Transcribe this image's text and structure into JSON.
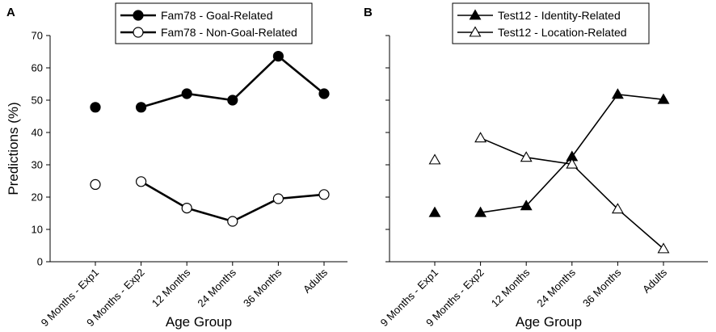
{
  "chart_data": [
    {
      "panel": "A",
      "type": "line",
      "categories": [
        "9 Months - Exp1",
        "9 Months - Exp2",
        "12 Months",
        "24 Months",
        "36 Months",
        "Adults"
      ],
      "xlabel": "Age Group",
      "ylabel": "Predictions (%)",
      "ylim": [
        0,
        70
      ],
      "yticks": [
        0,
        10,
        20,
        30,
        40,
        50,
        60,
        70
      ],
      "show_tick_labels": true,
      "grid": false,
      "legend_position": "top-center",
      "series": [
        {
          "name": "Fam78 - Goal-Related",
          "marker": "circle-filled",
          "line": "thick",
          "values": [
            47.8,
            47.8,
            52,
            50,
            63.6,
            52
          ],
          "connected_from": 1
        },
        {
          "name": "Fam78 - Non-Goal-Related",
          "marker": "circle-open",
          "line": "thick",
          "values": [
            23.9,
            24.8,
            16.6,
            12.5,
            19.5,
            20.8
          ],
          "connected_from": 1
        }
      ]
    },
    {
      "panel": "B",
      "type": "line",
      "categories": [
        "9 Months - Exp1",
        "9 Months - Exp2",
        "12 Months",
        "24 Months",
        "36 Months",
        "Adults"
      ],
      "xlabel": "Age Group",
      "ylabel": "",
      "ylim": [
        0,
        70
      ],
      "yticks": [
        0,
        10,
        20,
        30,
        40,
        50,
        60,
        70
      ],
      "show_tick_labels": false,
      "grid": false,
      "legend_position": "top-center",
      "series": [
        {
          "name": "Test12 - Identity-Related",
          "marker": "triangle-filled",
          "line": "thin",
          "values": [
            15.2,
            15.2,
            17.3,
            32.5,
            51.8,
            50.2
          ],
          "connected_from": 1
        },
        {
          "name": "Test12 - Location-Related",
          "marker": "triangle-open",
          "line": "thin",
          "values": [
            31.5,
            38.3,
            32.3,
            30.2,
            16.3,
            4.0
          ],
          "connected_from": 1
        }
      ]
    }
  ]
}
